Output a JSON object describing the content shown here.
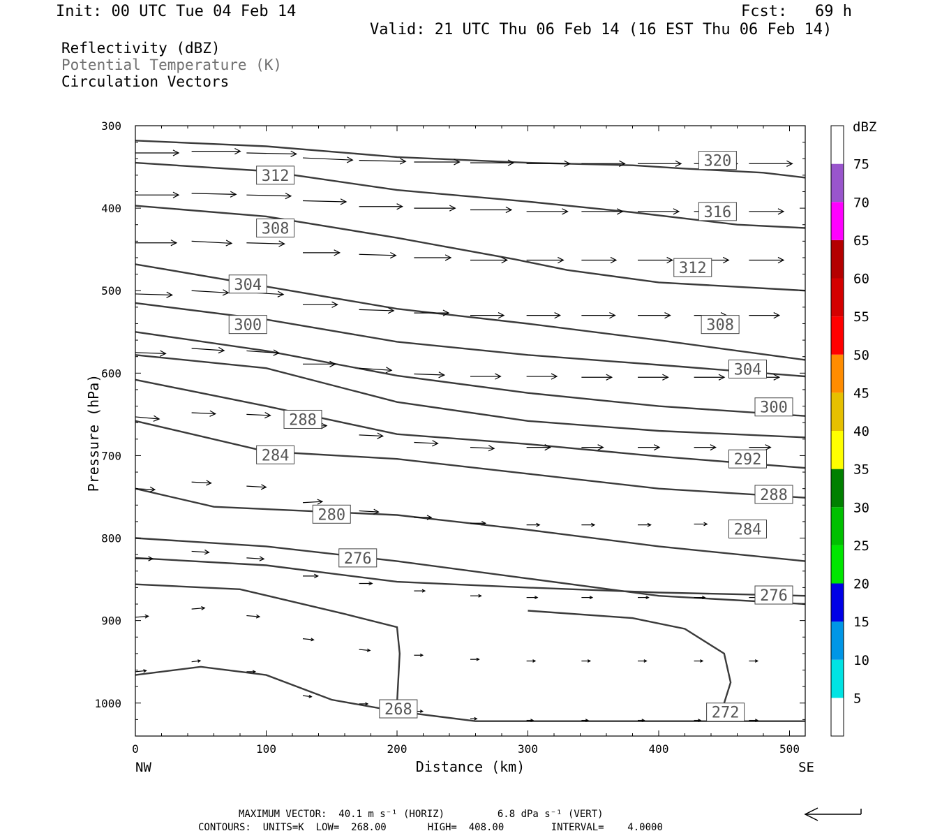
{
  "header": {
    "init": "Init: 00 UTC Tue 04 Feb 14",
    "fcst": "Fcst:   69 h",
    "valid": "Valid: 21 UTC Thu 06 Feb 14 (16 EST Thu 06 Feb 14)"
  },
  "legend_fields": [
    {
      "label": "Reflectivity (dBZ)",
      "color": "#000000"
    },
    {
      "label": "Potential Temperature (K)",
      "color": "#707070"
    },
    {
      "label": "Circulation Vectors",
      "color": "#000000"
    }
  ],
  "colorbar": {
    "title": "dBZ",
    "levels": [
      5,
      10,
      15,
      20,
      25,
      30,
      35,
      40,
      45,
      50,
      55,
      60,
      65,
      70,
      75
    ],
    "colors": [
      "#ffffff",
      "#00e3e3",
      "#0096e6",
      "#0000e6",
      "#00e600",
      "#00c000",
      "#008000",
      "#ffff00",
      "#e6c000",
      "#ff8c00",
      "#ff0000",
      "#d40000",
      "#b40000",
      "#ff00ff",
      "#9955cc",
      "#ffffff"
    ]
  },
  "footer": {
    "line1": "MAXIMUM VECTOR:  40.1 m s⁻¹ (HORIZ)         6.8 dPa s⁻¹ (VERT)",
    "line2": "CONTOURS:  UNITS=K  LOW=  268.00       HIGH=  408.00        INTERVAL=    4.0000"
  },
  "chart_data": {
    "type": "line",
    "xlabel": "Distance (km)",
    "ylabel": "Pressure (hPa)",
    "xlim": [
      0,
      512
    ],
    "ylim": [
      300,
      1040
    ],
    "y_inverted": true,
    "x_ticks": [
      0,
      100,
      200,
      300,
      400,
      500
    ],
    "y_ticks": [
      300,
      400,
      500,
      600,
      700,
      800,
      900,
      1000
    ],
    "x_end_labels": {
      "left": "NW",
      "right": "SE"
    },
    "series": [
      {
        "points": [
          [
            0,
            318
          ],
          [
            100,
            325
          ],
          [
            200,
            338
          ],
          [
            300,
            345
          ],
          [
            380,
            348
          ],
          [
            420,
            352
          ],
          [
            480,
            357
          ],
          [
            512,
            363
          ]
        ]
      },
      {
        "points": [
          [
            0,
            345
          ],
          [
            100,
            355
          ],
          [
            200,
            378
          ],
          [
            300,
            392
          ],
          [
            380,
            405
          ],
          [
            460,
            420
          ],
          [
            512,
            424
          ]
        ]
      },
      {
        "points": [
          [
            0,
            397
          ],
          [
            100,
            410
          ],
          [
            200,
            436
          ],
          [
            290,
            462
          ],
          [
            330,
            475
          ],
          [
            400,
            490
          ],
          [
            512,
            500
          ]
        ]
      },
      {
        "points": [
          [
            0,
            468
          ],
          [
            100,
            495
          ],
          [
            200,
            522
          ],
          [
            300,
            540
          ],
          [
            400,
            560
          ],
          [
            512,
            584
          ]
        ]
      },
      {
        "points": [
          [
            0,
            515
          ],
          [
            100,
            535
          ],
          [
            200,
            562
          ],
          [
            300,
            578
          ],
          [
            400,
            590
          ],
          [
            512,
            604
          ]
        ]
      },
      {
        "points": [
          [
            0,
            550
          ],
          [
            100,
            573
          ],
          [
            200,
            603
          ],
          [
            300,
            624
          ],
          [
            400,
            640
          ],
          [
            512,
            652
          ]
        ]
      },
      {
        "points": [
          [
            0,
            578
          ],
          [
            100,
            594
          ],
          [
            200,
            635
          ],
          [
            300,
            658
          ],
          [
            400,
            670
          ],
          [
            512,
            678
          ]
        ]
      },
      {
        "points": [
          [
            0,
            608
          ],
          [
            100,
            640
          ],
          [
            200,
            674
          ],
          [
            300,
            686
          ],
          [
            400,
            701
          ],
          [
            512,
            715
          ]
        ]
      },
      {
        "points": [
          [
            0,
            658
          ],
          [
            100,
            695
          ],
          [
            200,
            704
          ],
          [
            300,
            722
          ],
          [
            400,
            740
          ],
          [
            512,
            751
          ]
        ]
      },
      {
        "points": [
          [
            0,
            740
          ],
          [
            60,
            762
          ],
          [
            200,
            772
          ],
          [
            300,
            790
          ],
          [
            400,
            810
          ],
          [
            512,
            828
          ]
        ]
      },
      {
        "points": [
          [
            0,
            800
          ],
          [
            100,
            810
          ],
          [
            200,
            828
          ],
          [
            300,
            849
          ],
          [
            400,
            870
          ],
          [
            512,
            880
          ]
        ]
      },
      {
        "points": [
          [
            0,
            824
          ],
          [
            100,
            833
          ],
          [
            200,
            853
          ],
          [
            300,
            860
          ],
          [
            400,
            866
          ],
          [
            512,
            870
          ]
        ]
      },
      {
        "points": [
          [
            0,
            856
          ],
          [
            80,
            862
          ],
          [
            160,
            892
          ],
          [
            200,
            908
          ],
          [
            202,
            940
          ],
          [
            200,
            1000
          ]
        ]
      },
      {
        "points": [
          [
            0,
            966
          ],
          [
            50,
            956
          ],
          [
            100,
            966
          ],
          [
            150,
            996
          ],
          [
            200,
            1010
          ],
          [
            260,
            1022
          ],
          [
            512,
            1022
          ]
        ]
      },
      {
        "points": [
          [
            300,
            888
          ],
          [
            380,
            897
          ],
          [
            420,
            910
          ],
          [
            450,
            940
          ],
          [
            455,
            975
          ],
          [
            450,
            1000
          ]
        ]
      }
    ],
    "contour_labels": [
      {
        "text": "320",
        "x": 445,
        "y": 342
      },
      {
        "text": "312",
        "x": 107,
        "y": 360
      },
      {
        "text": "316",
        "x": 445,
        "y": 404
      },
      {
        "text": "308",
        "x": 107,
        "y": 424
      },
      {
        "text": "312",
        "x": 426,
        "y": 472
      },
      {
        "text": "304",
        "x": 86,
        "y": 492
      },
      {
        "text": "300",
        "x": 86,
        "y": 541
      },
      {
        "text": "308",
        "x": 447,
        "y": 541
      },
      {
        "text": "304",
        "x": 468,
        "y": 595
      },
      {
        "text": "300",
        "x": 488,
        "y": 641
      },
      {
        "text": "288",
        "x": 128,
        "y": 656
      },
      {
        "text": "284",
        "x": 107,
        "y": 699
      },
      {
        "text": "292",
        "x": 468,
        "y": 704
      },
      {
        "text": "288",
        "x": 488,
        "y": 747
      },
      {
        "text": "280",
        "x": 150,
        "y": 771
      },
      {
        "text": "284",
        "x": 468,
        "y": 789
      },
      {
        "text": "276",
        "x": 170,
        "y": 824
      },
      {
        "text": "276",
        "x": 488,
        "y": 869
      },
      {
        "text": "268",
        "x": 201,
        "y": 1007
      },
      {
        "text": "272",
        "x": 451,
        "y": 1011
      }
    ],
    "vectors": [
      {
        "x": 0,
        "y": 333,
        "u": 40,
        "v": 0
      },
      {
        "x": 43,
        "y": 331,
        "u": 45,
        "v": 0
      },
      {
        "x": 85,
        "y": 333,
        "u": 46,
        "v": 1
      },
      {
        "x": 128,
        "y": 339,
        "u": 46,
        "v": 2
      },
      {
        "x": 171,
        "y": 342,
        "u": 43,
        "v": 1
      },
      {
        "x": 213,
        "y": 344,
        "u": 42,
        "v": 0
      },
      {
        "x": 256,
        "y": 345,
        "u": 40,
        "v": 0
      },
      {
        "x": 299,
        "y": 346,
        "u": 40,
        "v": 0
      },
      {
        "x": 341,
        "y": 346,
        "u": 40,
        "v": 0
      },
      {
        "x": 384,
        "y": 346,
        "u": 40,
        "v": 0
      },
      {
        "x": 427,
        "y": 346,
        "u": 40,
        "v": 0
      },
      {
        "x": 469,
        "y": 346,
        "u": 40,
        "v": 0
      },
      {
        "x": 0,
        "y": 384,
        "u": 40,
        "v": 0
      },
      {
        "x": 43,
        "y": 382,
        "u": 41,
        "v": 1
      },
      {
        "x": 85,
        "y": 384,
        "u": 41,
        "v": 1
      },
      {
        "x": 128,
        "y": 391,
        "u": 40,
        "v": 1
      },
      {
        "x": 171,
        "y": 398,
        "u": 40,
        "v": 0
      },
      {
        "x": 213,
        "y": 400,
        "u": 38,
        "v": 0
      },
      {
        "x": 256,
        "y": 402,
        "u": 38,
        "v": 0
      },
      {
        "x": 299,
        "y": 404,
        "u": 38,
        "v": 0
      },
      {
        "x": 341,
        "y": 404,
        "u": 38,
        "v": 0
      },
      {
        "x": 384,
        "y": 404,
        "u": 38,
        "v": 0
      },
      {
        "x": 427,
        "y": 404,
        "u": 38,
        "v": 0
      },
      {
        "x": 469,
        "y": 404,
        "u": 32,
        "v": 0
      },
      {
        "x": 0,
        "y": 442,
        "u": 38,
        "v": 0
      },
      {
        "x": 43,
        "y": 440,
        "u": 37,
        "v": 2
      },
      {
        "x": 85,
        "y": 442,
        "u": 35,
        "v": 1
      },
      {
        "x": 128,
        "y": 454,
        "u": 34,
        "v": 0
      },
      {
        "x": 171,
        "y": 456,
        "u": 34,
        "v": 1
      },
      {
        "x": 213,
        "y": 460,
        "u": 34,
        "v": 0
      },
      {
        "x": 256,
        "y": 463,
        "u": 34,
        "v": 0
      },
      {
        "x": 299,
        "y": 463,
        "u": 34,
        "v": 0
      },
      {
        "x": 341,
        "y": 463,
        "u": 32,
        "v": 0
      },
      {
        "x": 384,
        "y": 463,
        "u": 32,
        "v": 0
      },
      {
        "x": 427,
        "y": 463,
        "u": 32,
        "v": 0
      },
      {
        "x": 469,
        "y": 463,
        "u": 32,
        "v": 0
      },
      {
        "x": 0,
        "y": 504,
        "u": 34,
        "v": 1
      },
      {
        "x": 43,
        "y": 500,
        "u": 34,
        "v": 2
      },
      {
        "x": 85,
        "y": 502,
        "u": 34,
        "v": 2
      },
      {
        "x": 128,
        "y": 517,
        "u": 32,
        "v": 0
      },
      {
        "x": 171,
        "y": 523,
        "u": 32,
        "v": 1
      },
      {
        "x": 213,
        "y": 527,
        "u": 32,
        "v": 0
      },
      {
        "x": 256,
        "y": 530,
        "u": 31,
        "v": 0
      },
      {
        "x": 299,
        "y": 530,
        "u": 31,
        "v": 0
      },
      {
        "x": 341,
        "y": 530,
        "u": 31,
        "v": 0
      },
      {
        "x": 384,
        "y": 530,
        "u": 30,
        "v": 0
      },
      {
        "x": 427,
        "y": 530,
        "u": 30,
        "v": 0
      },
      {
        "x": 469,
        "y": 530,
        "u": 28,
        "v": 0
      },
      {
        "x": 0,
        "y": 575,
        "u": 28,
        "v": 1
      },
      {
        "x": 43,
        "y": 570,
        "u": 30,
        "v": 2
      },
      {
        "x": 85,
        "y": 573,
        "u": 30,
        "v": 2
      },
      {
        "x": 128,
        "y": 589,
        "u": 30,
        "v": 0
      },
      {
        "x": 171,
        "y": 594,
        "u": 30,
        "v": 2
      },
      {
        "x": 213,
        "y": 601,
        "u": 28,
        "v": 1
      },
      {
        "x": 256,
        "y": 604,
        "u": 28,
        "v": 0
      },
      {
        "x": 299,
        "y": 604,
        "u": 28,
        "v": 0
      },
      {
        "x": 341,
        "y": 605,
        "u": 28,
        "v": 0
      },
      {
        "x": 384,
        "y": 605,
        "u": 28,
        "v": 0
      },
      {
        "x": 427,
        "y": 605,
        "u": 28,
        "v": 0
      },
      {
        "x": 469,
        "y": 605,
        "u": 28,
        "v": 0
      },
      {
        "x": 0,
        "y": 653,
        "u": 22,
        "v": 2
      },
      {
        "x": 43,
        "y": 648,
        "u": 22,
        "v": 1
      },
      {
        "x": 85,
        "y": 650,
        "u": 22,
        "v": 1
      },
      {
        "x": 128,
        "y": 665,
        "u": 22,
        "v": -1
      },
      {
        "x": 171,
        "y": 675,
        "u": 22,
        "v": 1
      },
      {
        "x": 213,
        "y": 684,
        "u": 22,
        "v": 1
      },
      {
        "x": 256,
        "y": 690,
        "u": 22,
        "v": 1
      },
      {
        "x": 299,
        "y": 690,
        "u": 22,
        "v": 0
      },
      {
        "x": 341,
        "y": 690,
        "u": 20,
        "v": 0
      },
      {
        "x": 384,
        "y": 690,
        "u": 20,
        "v": 0
      },
      {
        "x": 427,
        "y": 690,
        "u": 20,
        "v": 0
      },
      {
        "x": 469,
        "y": 690,
        "u": 20,
        "v": 0
      },
      {
        "x": 0,
        "y": 740,
        "u": 18,
        "v": 1
      },
      {
        "x": 43,
        "y": 732,
        "u": 18,
        "v": 1
      },
      {
        "x": 85,
        "y": 737,
        "u": 18,
        "v": 1
      },
      {
        "x": 128,
        "y": 757,
        "u": 18,
        "v": -1
      },
      {
        "x": 171,
        "y": 767,
        "u": 18,
        "v": 1
      },
      {
        "x": 213,
        "y": 775,
        "u": 16,
        "v": 0
      },
      {
        "x": 256,
        "y": 782,
        "u": 14,
        "v": 0
      },
      {
        "x": 299,
        "y": 784,
        "u": 12,
        "v": 0
      },
      {
        "x": 341,
        "y": 784,
        "u": 12,
        "v": 0
      },
      {
        "x": 384,
        "y": 784,
        "u": 12,
        "v": 0
      },
      {
        "x": 427,
        "y": 783,
        "u": 12,
        "v": 0
      },
      {
        "x": 469,
        "y": 782,
        "u": 14,
        "v": 0
      },
      {
        "x": 0,
        "y": 825,
        "u": 16,
        "v": 0
      },
      {
        "x": 43,
        "y": 816,
        "u": 16,
        "v": 1
      },
      {
        "x": 85,
        "y": 824,
        "u": 16,
        "v": 1
      },
      {
        "x": 128,
        "y": 846,
        "u": 14,
        "v": 0
      },
      {
        "x": 171,
        "y": 855,
        "u": 12,
        "v": 0
      },
      {
        "x": 213,
        "y": 864,
        "u": 10,
        "v": 0
      },
      {
        "x": 256,
        "y": 870,
        "u": 10,
        "v": 0
      },
      {
        "x": 299,
        "y": 872,
        "u": 10,
        "v": 0
      },
      {
        "x": 341,
        "y": 872,
        "u": 10,
        "v": 0
      },
      {
        "x": 384,
        "y": 872,
        "u": 10,
        "v": 0
      },
      {
        "x": 427,
        "y": 872,
        "u": 10,
        "v": 0
      },
      {
        "x": 469,
        "y": 872,
        "u": 10,
        "v": 0
      },
      {
        "x": 0,
        "y": 896,
        "u": 12,
        "v": -1
      },
      {
        "x": 43,
        "y": 886,
        "u": 12,
        "v": -1
      },
      {
        "x": 85,
        "y": 894,
        "u": 12,
        "v": 1
      },
      {
        "x": 128,
        "y": 922,
        "u": 10,
        "v": 1
      },
      {
        "x": 171,
        "y": 935,
        "u": 10,
        "v": 1
      },
      {
        "x": 213,
        "y": 942,
        "u": 8,
        "v": 0
      },
      {
        "x": 256,
        "y": 947,
        "u": 8,
        "v": 0
      },
      {
        "x": 299,
        "y": 949,
        "u": 8,
        "v": 0
      },
      {
        "x": 341,
        "y": 949,
        "u": 8,
        "v": 0
      },
      {
        "x": 384,
        "y": 949,
        "u": 8,
        "v": 0
      },
      {
        "x": 427,
        "y": 949,
        "u": 8,
        "v": 0
      },
      {
        "x": 469,
        "y": 949,
        "u": 8,
        "v": 0
      },
      {
        "x": 0,
        "y": 962,
        "u": 10,
        "v": -1
      },
      {
        "x": 43,
        "y": 950,
        "u": 8,
        "v": -1
      },
      {
        "x": 85,
        "y": 962,
        "u": 8,
        "v": 0
      },
      {
        "x": 128,
        "y": 991,
        "u": 8,
        "v": 1
      },
      {
        "x": 171,
        "y": 1001,
        "u": 8,
        "v": 0
      },
      {
        "x": 213,
        "y": 1010,
        "u": 8,
        "v": 0
      },
      {
        "x": 256,
        "y": 1019,
        "u": 6,
        "v": 0
      },
      {
        "x": 299,
        "y": 1021,
        "u": 6,
        "v": 0
      },
      {
        "x": 341,
        "y": 1021,
        "u": 6,
        "v": 0
      },
      {
        "x": 384,
        "y": 1021,
        "u": 6,
        "v": 0
      },
      {
        "x": 427,
        "y": 1021,
        "u": 6,
        "v": 0
      },
      {
        "x": 469,
        "y": 1021,
        "u": 8,
        "v": 0
      }
    ],
    "reference_vector": {
      "label": "MAXIMUM VECTOR",
      "direction": "left"
    }
  }
}
